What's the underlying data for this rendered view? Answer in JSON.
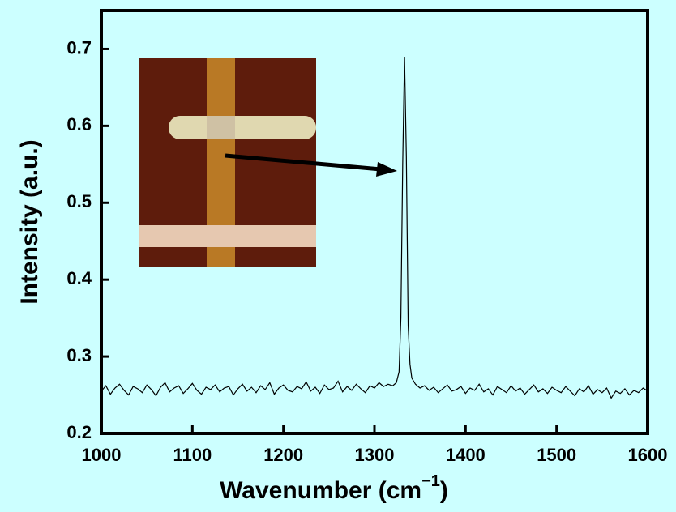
{
  "chart_data": {
    "type": "line",
    "xlabel": [
      "Wavenumber (cm",
      "−1",
      ")"
    ],
    "ylabel": "Intensity (a.u.)",
    "xlim": [
      1000,
      1600
    ],
    "xticks": [
      1000,
      1100,
      1200,
      1300,
      1400,
      1500,
      1600
    ],
    "ylim": [
      0.2,
      0.75
    ],
    "yticks": [
      0.2,
      0.3,
      0.4,
      0.5,
      0.6,
      0.7
    ],
    "color": "#000000",
    "x": [
      1000,
      1005,
      1010,
      1015,
      1020,
      1025,
      1030,
      1035,
      1040,
      1045,
      1050,
      1055,
      1060,
      1065,
      1070,
      1075,
      1080,
      1085,
      1090,
      1095,
      1100,
      1105,
      1110,
      1115,
      1120,
      1125,
      1130,
      1135,
      1140,
      1145,
      1150,
      1155,
      1160,
      1165,
      1170,
      1175,
      1180,
      1185,
      1190,
      1195,
      1200,
      1205,
      1210,
      1215,
      1220,
      1225,
      1230,
      1235,
      1240,
      1245,
      1250,
      1255,
      1260,
      1265,
      1270,
      1275,
      1280,
      1285,
      1290,
      1295,
      1300,
      1305,
      1310,
      1315,
      1320,
      1324,
      1327,
      1329,
      1331,
      1333,
      1335,
      1337,
      1339,
      1341,
      1345,
      1350,
      1355,
      1360,
      1365,
      1370,
      1375,
      1380,
      1385,
      1390,
      1395,
      1400,
      1405,
      1410,
      1415,
      1420,
      1425,
      1430,
      1435,
      1440,
      1445,
      1450,
      1455,
      1460,
      1465,
      1470,
      1475,
      1480,
      1485,
      1490,
      1495,
      1500,
      1505,
      1510,
      1515,
      1520,
      1525,
      1530,
      1535,
      1540,
      1545,
      1550,
      1555,
      1560,
      1565,
      1570,
      1575,
      1580,
      1585,
      1590,
      1595,
      1600
    ],
    "values": [
      0.255,
      0.262,
      0.251,
      0.259,
      0.264,
      0.256,
      0.25,
      0.261,
      0.258,
      0.253,
      0.263,
      0.257,
      0.249,
      0.26,
      0.266,
      0.254,
      0.259,
      0.262,
      0.252,
      0.258,
      0.265,
      0.256,
      0.251,
      0.26,
      0.257,
      0.263,
      0.254,
      0.259,
      0.261,
      0.25,
      0.258,
      0.264,
      0.255,
      0.26,
      0.253,
      0.262,
      0.257,
      0.266,
      0.251,
      0.259,
      0.263,
      0.256,
      0.254,
      0.261,
      0.258,
      0.267,
      0.255,
      0.26,
      0.252,
      0.263,
      0.257,
      0.259,
      0.268,
      0.254,
      0.261,
      0.256,
      0.264,
      0.258,
      0.253,
      0.262,
      0.259,
      0.266,
      0.261,
      0.264,
      0.262,
      0.266,
      0.28,
      0.35,
      0.55,
      0.69,
      0.56,
      0.34,
      0.29,
      0.272,
      0.264,
      0.259,
      0.262,
      0.256,
      0.26,
      0.253,
      0.258,
      0.263,
      0.255,
      0.257,
      0.261,
      0.252,
      0.259,
      0.256,
      0.264,
      0.254,
      0.258,
      0.25,
      0.261,
      0.257,
      0.253,
      0.262,
      0.255,
      0.259,
      0.251,
      0.257,
      0.263,
      0.254,
      0.258,
      0.252,
      0.26,
      0.256,
      0.253,
      0.261,
      0.255,
      0.249,
      0.258,
      0.254,
      0.262,
      0.251,
      0.257,
      0.253,
      0.259,
      0.246,
      0.255,
      0.252,
      0.258,
      0.25,
      0.256,
      0.253,
      0.259,
      0.255
    ]
  }
}
